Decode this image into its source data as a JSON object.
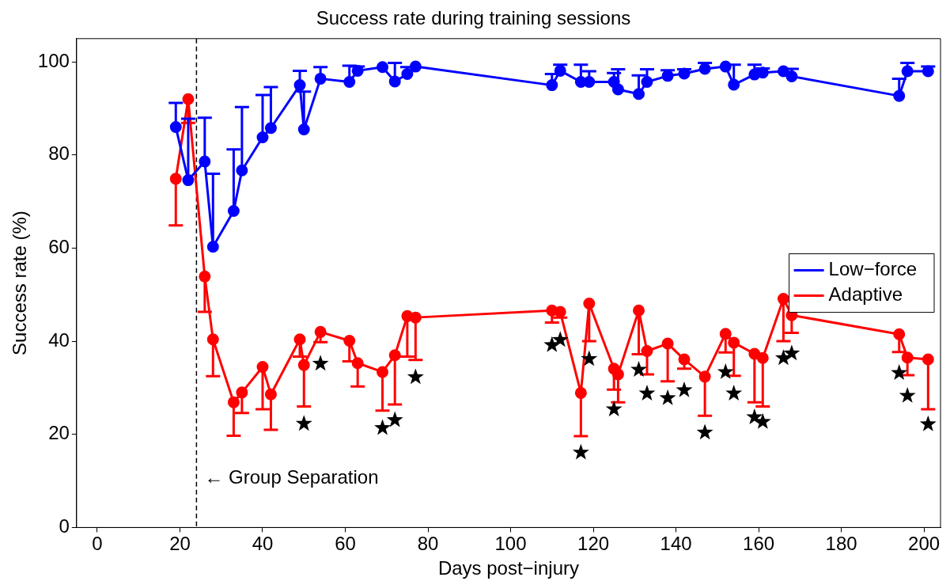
{
  "chart_data": {
    "type": "line",
    "title": "Success rate during training sessions",
    "xlabel": "Days post−injury",
    "ylabel": "Success rate (%)",
    "xlim": [
      -5,
      204
    ],
    "xticks": [
      0,
      20,
      40,
      60,
      80,
      100,
      120,
      140,
      160,
      180,
      200
    ],
    "ylim": [
      0,
      105
    ],
    "yticks": [
      0,
      20,
      40,
      60,
      80,
      100
    ],
    "grid": false,
    "legend": "right",
    "marker": "circle",
    "line_style": "solid",
    "series": [
      {
        "name": "Low−force",
        "color": "#0000ff",
        "x": [
          19,
          22,
          26,
          28,
          33,
          35,
          40,
          42,
          49,
          50,
          54,
          61,
          63,
          69,
          72,
          75,
          77,
          110,
          112,
          117,
          119,
          125,
          126,
          131,
          133,
          138,
          142,
          147,
          152,
          154,
          159,
          161,
          166,
          168,
          194,
          196,
          201
        ],
        "values": [
          86,
          74.6,
          78.6,
          60.3,
          68,
          76.7,
          83.8,
          85.8,
          95,
          85.5,
          96.4,
          95.7,
          98.1,
          98.9,
          95.8,
          97.4,
          99,
          95,
          98.1,
          95.7,
          95.7,
          95.7,
          94.1,
          93.1,
          95.7,
          97,
          97.5,
          98.5,
          99,
          95.1,
          97.3,
          97.7,
          98,
          96.9,
          92.7,
          98,
          98
        ],
        "errors": [
          [
            86,
            91.2
          ],
          [
            74.6,
            87.8
          ],
          [
            78.6,
            88
          ],
          [
            60.3,
            76
          ],
          [
            68,
            81.2
          ],
          [
            76.7,
            90.3
          ],
          [
            83.8,
            92.9
          ],
          [
            85.8,
            94.6
          ],
          [
            95,
            98.1
          ],
          [
            85.5,
            93.6
          ],
          [
            96.4,
            98.9
          ],
          [
            95.7,
            99.2
          ],
          [
            98.1,
            99
          ],
          null,
          [
            95.8,
            99.8
          ],
          [
            97.4,
            98.9
          ],
          null,
          [
            95,
            97.4
          ],
          [
            98.1,
            99.4
          ],
          [
            95.7,
            99.4
          ],
          [
            95.7,
            98
          ],
          [
            95.7,
            97.6
          ],
          [
            94.1,
            98.4
          ],
          [
            93.1,
            97.1
          ],
          [
            95.7,
            98.4
          ],
          [
            97,
            98.2
          ],
          [
            97.5,
            98.4
          ],
          [
            98.5,
            99.8
          ],
          null,
          [
            95.1,
            99.4
          ],
          [
            97.3,
            99.4
          ],
          [
            97.7,
            98.6
          ],
          null,
          [
            96.9,
            98.5
          ],
          [
            92.7,
            96.4
          ],
          [
            98,
            99.8
          ],
          [
            98,
            99
          ]
        ]
      },
      {
        "name": "Adaptive",
        "color": "#ff0000",
        "x": [
          19,
          22,
          26,
          28,
          33,
          35,
          40,
          42,
          49,
          50,
          54,
          61,
          63,
          69,
          72,
          75,
          77,
          110,
          112,
          117,
          119,
          125,
          126,
          131,
          133,
          138,
          142,
          147,
          152,
          154,
          159,
          161,
          166,
          168,
          194,
          196,
          201
        ],
        "values": [
          74.9,
          92,
          53.9,
          40.4,
          26.9,
          29,
          34.5,
          28.6,
          40.4,
          34.9,
          42,
          40.1,
          35.3,
          33.4,
          37,
          45.4,
          45.1,
          46.6,
          46.3,
          28.9,
          48.1,
          34.1,
          32.9,
          46.6,
          37.9,
          39.5,
          36.1,
          32.4,
          41.6,
          39.7,
          37.3,
          36.4,
          49.1,
          45.6,
          41.5,
          36.5,
          36.1
        ],
        "errors": [
          [
            64.9,
            74.9
          ],
          [
            86.9,
            92
          ],
          [
            46.3,
            53.9
          ],
          [
            32.5,
            40.4
          ],
          [
            19.7,
            26.9
          ],
          [
            24.6,
            29
          ],
          [
            25.4,
            34.5
          ],
          [
            21,
            28.6
          ],
          [
            36.7,
            40.4
          ],
          [
            26,
            34.9
          ],
          [
            39.8,
            42
          ],
          [
            35.7,
            40.1
          ],
          [
            30.3,
            35.3
          ],
          [
            25.1,
            33.4
          ],
          [
            26.4,
            37
          ],
          [
            36.7,
            45.4
          ],
          [
            36,
            45.1
          ],
          [
            44,
            46.6
          ],
          [
            45.1,
            46.3
          ],
          [
            19.6,
            28.9
          ],
          [
            40,
            48.1
          ],
          [
            29.6,
            34.1
          ],
          [
            26.9,
            32.9
          ],
          [
            37.2,
            46.6
          ],
          [
            32.9,
            37.9
          ],
          [
            31.4,
            39.5
          ],
          [
            34.1,
            36.1
          ],
          [
            24,
            32.4
          ],
          [
            37.6,
            41.6
          ],
          [
            32.6,
            39.7
          ],
          [
            26.9,
            37.3
          ],
          [
            26,
            36.4
          ],
          [
            40,
            49.1
          ],
          [
            41.8,
            45.6
          ],
          [
            37.7,
            41.5
          ],
          [
            32.7,
            36.5
          ],
          [
            25.4,
            36.1
          ]
        ]
      },
      {
        "type": "scatter",
        "color": "#000000",
        "marker": "star",
        "x": [
          50,
          54,
          69,
          72,
          77,
          110,
          112,
          117,
          119,
          125,
          131,
          133,
          138,
          142,
          147,
          152,
          154,
          159,
          161,
          166,
          168,
          194,
          196,
          201
        ],
        "values": [
          22.3,
          35.2,
          21.4,
          23.1,
          32.3,
          39.2,
          40.3,
          16.1,
          36.2,
          25.4,
          33.9,
          28.8,
          27.8,
          29.5,
          20.4,
          33.4,
          28.8,
          23.7,
          22.7,
          36.4,
          37.4,
          33.2,
          28.3,
          22.2
        ]
      }
    ],
    "ref_lines": [
      {
        "axis": "x",
        "value": 24,
        "color": "#000000",
        "line_style": "dashed"
      }
    ],
    "annotations": [
      "← Group Separation"
    ]
  }
}
